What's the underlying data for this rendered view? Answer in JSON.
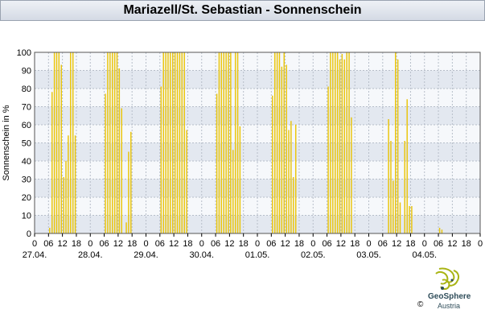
{
  "title": "Mariazell/St. Sebastian - Sonnenschein",
  "brand": {
    "name": "GeoSphere",
    "sub": "Austria",
    "copyright": "©"
  },
  "colors": {
    "bar": "#f5d000",
    "bar_edge": "#e0b800",
    "band_a": "#e3e8f0",
    "band_b": "#f6f8fb",
    "grid": "#b7bec9",
    "logo": "#a9b414"
  },
  "chart_data": {
    "type": "bar",
    "ylabel": "Sonnenschein in %",
    "ylim": [
      0,
      100
    ],
    "yticks": [
      0,
      10,
      20,
      30,
      40,
      50,
      60,
      70,
      80,
      90,
      100
    ],
    "hour_labels": [
      "0",
      "06",
      "12",
      "18"
    ],
    "dates": [
      "27.04.",
      "28.04.",
      "29.04.",
      "30.04.",
      "01.05.",
      "02.05.",
      "03.05.",
      "04.05."
    ],
    "extra_end_label": "0",
    "x_unit": "hours since 27.04. 00:00 (hourly bars)",
    "days": [
      {
        "date": "27.04.",
        "hourly": [
          0,
          0,
          0,
          0,
          0,
          0,
          3,
          78,
          100,
          100,
          100,
          93,
          31,
          40,
          54,
          100,
          100,
          54,
          0,
          0,
          0,
          0,
          0,
          0
        ]
      },
      {
        "date": "28.04.",
        "hourly": [
          0,
          0,
          0,
          0,
          0,
          0,
          77,
          100,
          100,
          100,
          100,
          100,
          91,
          69,
          0,
          6,
          45,
          56,
          0,
          0,
          0,
          0,
          0,
          0
        ]
      },
      {
        "date": "29.04.",
        "hourly": [
          0,
          0,
          0,
          0,
          0,
          0,
          81,
          100,
          100,
          100,
          100,
          100,
          100,
          100,
          100,
          100,
          100,
          57,
          0,
          0,
          0,
          0,
          0,
          0
        ]
      },
      {
        "date": "30.04.",
        "hourly": [
          0,
          0,
          0,
          0,
          0,
          0,
          77,
          100,
          100,
          100,
          100,
          100,
          100,
          46,
          100,
          100,
          59,
          0,
          0,
          0,
          0,
          0,
          0,
          0
        ]
      },
      {
        "date": "01.05.",
        "hourly": [
          0,
          0,
          0,
          0,
          0,
          0,
          76,
          100,
          100,
          100,
          92,
          100,
          93,
          57,
          62,
          31,
          60,
          0,
          0,
          0,
          0,
          0,
          0,
          0
        ]
      },
      {
        "date": "02.05.",
        "hourly": [
          0,
          0,
          0,
          0,
          0,
          0,
          81,
          100,
          100,
          100,
          100,
          96,
          99,
          96,
          100,
          100,
          64,
          0,
          0,
          0,
          0,
          0,
          0,
          0
        ]
      },
      {
        "date": "03.05.",
        "hourly": [
          0,
          0,
          0,
          0,
          0,
          0,
          0,
          0,
          63,
          51,
          29,
          100,
          96,
          17,
          0,
          51,
          74,
          15,
          15,
          0,
          0,
          0,
          0,
          0
        ]
      },
      {
        "date": "04.05.",
        "hourly": [
          0,
          0,
          0,
          0,
          0,
          0,
          3,
          2
        ]
      }
    ]
  }
}
